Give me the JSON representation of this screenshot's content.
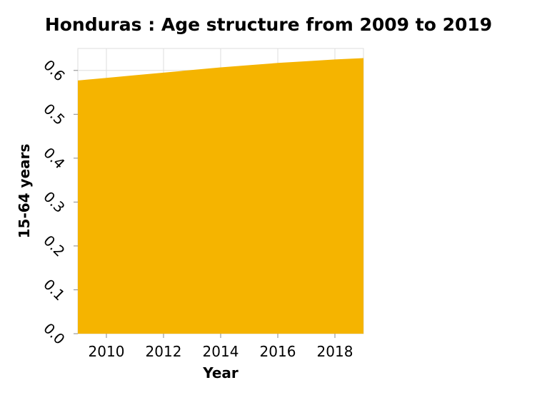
{
  "chart_data": {
    "type": "area",
    "title": "Honduras : Age structure from 2009 to 2019",
    "xlabel": "Year",
    "ylabel": "15-64 years",
    "x": [
      2009,
      2010,
      2011,
      2012,
      2013,
      2014,
      2015,
      2016,
      2017,
      2018,
      2019
    ],
    "series": [
      {
        "values": [
          0.577,
          0.583,
          0.589,
          0.595,
          0.601,
          0.607,
          0.612,
          0.617,
          0.621,
          0.625,
          0.628
        ]
      }
    ],
    "xlim": [
      2009,
      2019
    ],
    "ylim": [
      0,
      0.65
    ],
    "xticks": [
      2010,
      2012,
      2014,
      2016,
      2018
    ],
    "xtick_labels": [
      "2010",
      "2012",
      "2014",
      "2016",
      "2018"
    ],
    "yticks": [
      0,
      0.1,
      0.2,
      0.3,
      0.4,
      0.5,
      0.6
    ],
    "ytick_labels": [
      "0.0",
      "0.1",
      "0.2",
      "0.3",
      "0.4",
      "0.5",
      "0.6"
    ],
    "grid": true,
    "legend": "none",
    "colors": {
      "fill": "#f5b400",
      "grid": "#dddddd"
    }
  }
}
